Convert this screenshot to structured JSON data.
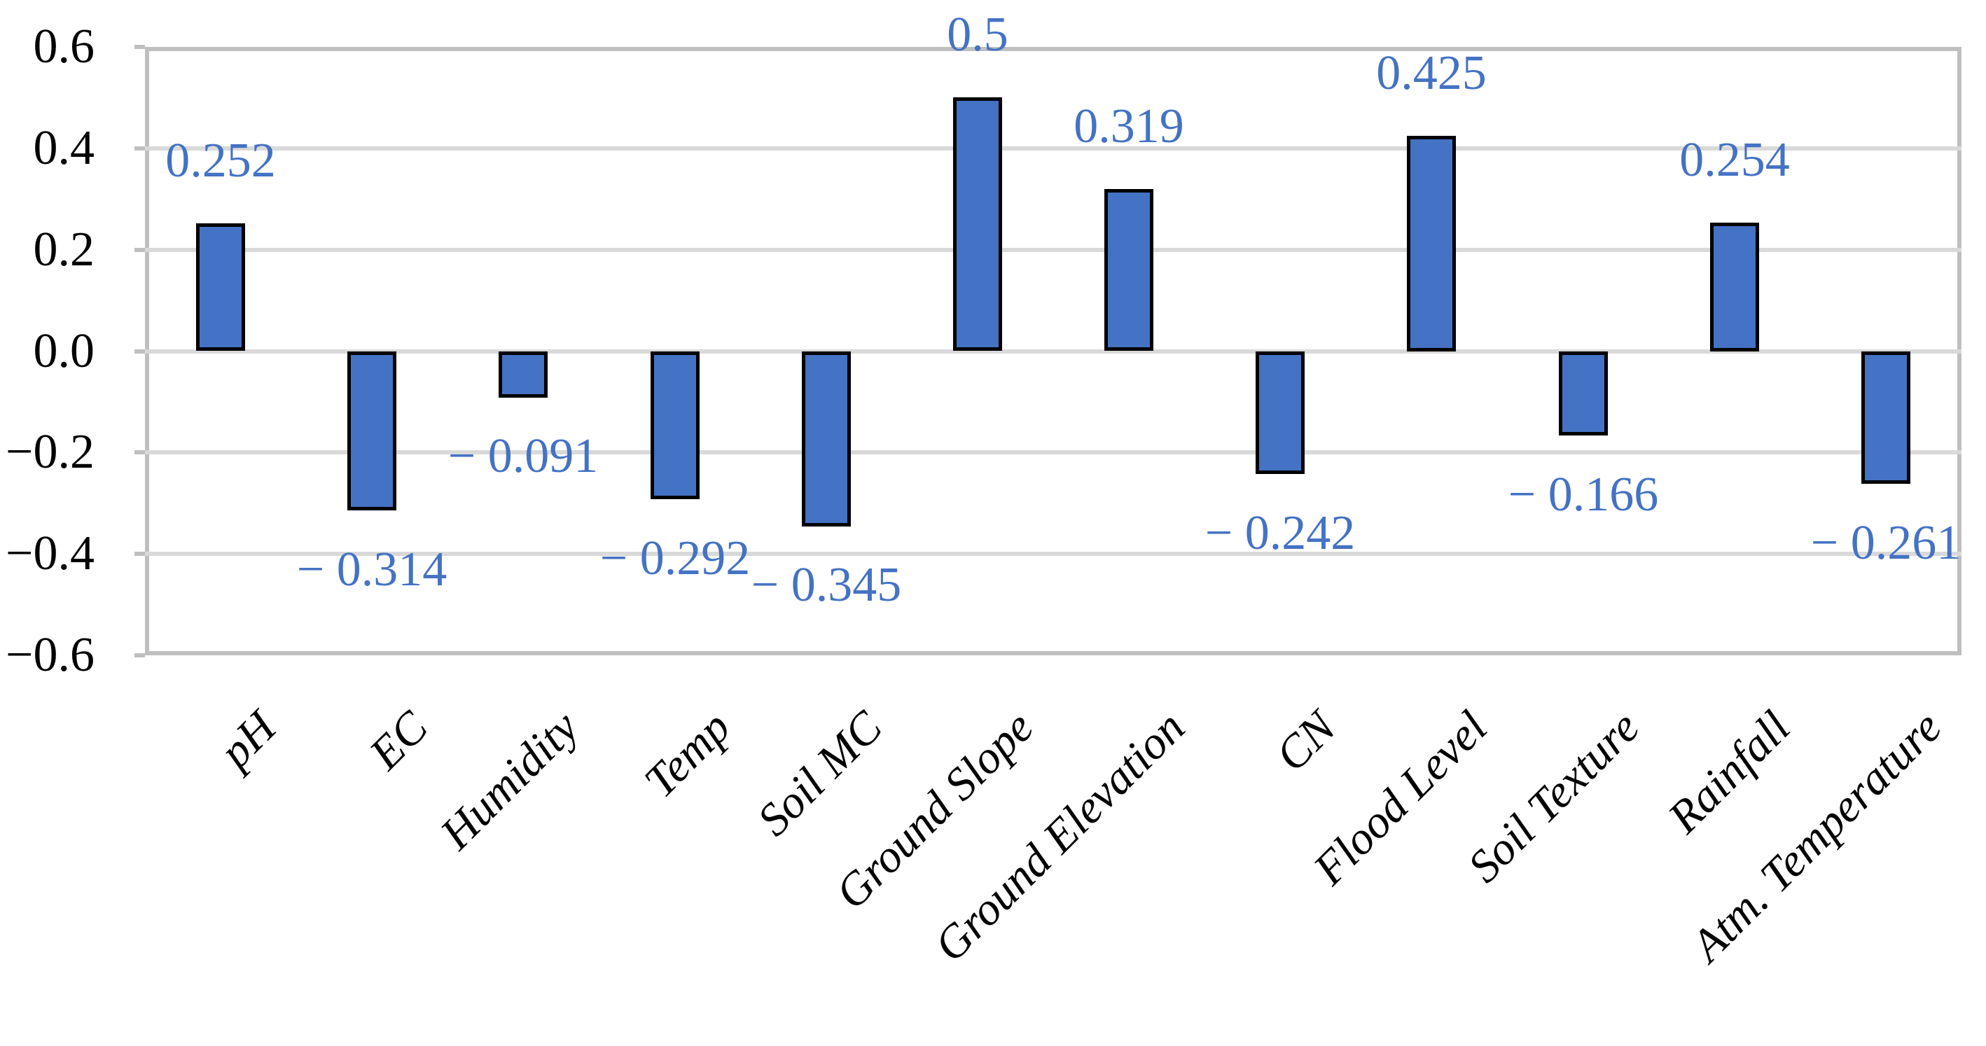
{
  "chart_data": {
    "type": "bar",
    "title": "",
    "xlabel": "",
    "ylabel": "",
    "categories": [
      "pH",
      "EC",
      "Humidity",
      "Temp",
      "Soil MC",
      "Ground Slope",
      "Ground Elevation",
      "CN",
      "Flood Level",
      "Soil Texture",
      "Rainfall",
      "Atm. Temperature"
    ],
    "values": [
      0.252,
      -0.314,
      -0.091,
      -0.292,
      -0.345,
      0.5,
      0.319,
      -0.242,
      0.425,
      -0.166,
      0.254,
      -0.261
    ],
    "data_labels": [
      "0.252",
      "− 0.314",
      "− 0.091",
      "− 0.292",
      "− 0.345",
      "0.5",
      "0.319",
      "− 0.242",
      "0.425",
      "− 0.166",
      "0.254",
      "− 0.261"
    ],
    "y_tick_labels": [
      "0.6",
      "0.4",
      "0.2",
      "0.0",
      "−0.2",
      "−0.4",
      "−0.6"
    ],
    "ylim": [
      -0.6,
      0.6
    ],
    "y_tick_step": 0.2,
    "grid": true,
    "legend_position": "none",
    "colors": {
      "bar_fill": "#4472C4",
      "bar_border": "#000000",
      "data_label": "#4472C4",
      "gridline": "#D9D9D9",
      "axis_border": "#BFBFBF",
      "axis_text": "#000000"
    }
  }
}
